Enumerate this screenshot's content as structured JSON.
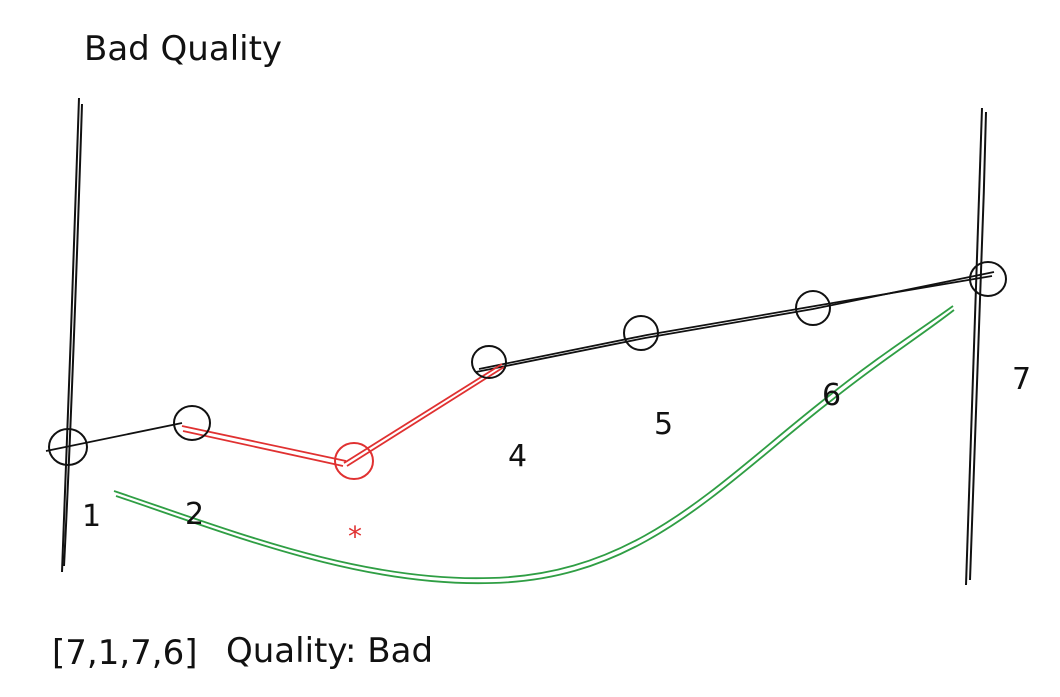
{
  "title": "Bad Quality",
  "footer": {
    "sequence": "[7,1,7,6]",
    "quality": "Quality: Bad"
  },
  "marker": "*",
  "points": [
    {
      "label": "1",
      "state": "ok"
    },
    {
      "label": "2",
      "state": "ok"
    },
    {
      "label": "",
      "state": "bad"
    },
    {
      "label": "4",
      "state": "ok"
    },
    {
      "label": "5",
      "state": "ok"
    },
    {
      "label": "6",
      "state": "ok"
    },
    {
      "label": "7",
      "state": "ok"
    }
  ],
  "colors": {
    "ink": "#111111",
    "bad": "#e03131",
    "curve": "#2f9e44"
  }
}
